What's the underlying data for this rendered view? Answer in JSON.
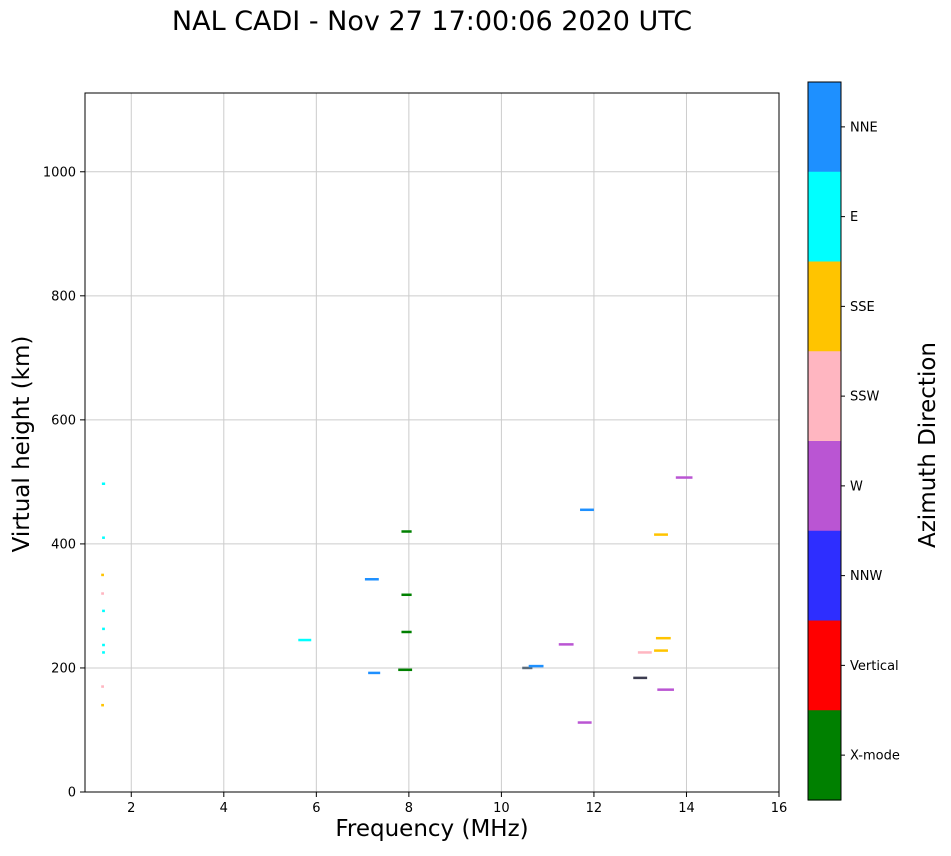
{
  "chart_data": {
    "type": "scatter",
    "title": "NAL CADI - Nov 27 17:00:06 2020 UTC",
    "xlabel": "Frequency (MHz)",
    "ylabel": "Virtual height (km)",
    "colorbar_label": "Azimuth Direction",
    "xlim": [
      1,
      16
    ],
    "ylim": [
      0,
      1127
    ],
    "xticks": [
      2,
      4,
      6,
      8,
      10,
      12,
      14,
      16
    ],
    "yticks": [
      0,
      200,
      400,
      600,
      800,
      1000
    ],
    "grid": true,
    "grid_color": "#cccccc",
    "marker": "horizontal-dash",
    "legend_position": "right-colorbar",
    "legend": [
      {
        "label": "NNE",
        "color": "#1E90FF"
      },
      {
        "label": "E",
        "color": "#00FFFF"
      },
      {
        "label": "SSE",
        "color": "#FFC400"
      },
      {
        "label": "SSW",
        "color": "#FFB6C1"
      },
      {
        "label": "W",
        "color": "#BA55D3"
      },
      {
        "label": "NNW",
        "color": "#2E2EFF"
      },
      {
        "label": "Vertical",
        "color": "#FF0000"
      },
      {
        "label": "X-mode",
        "color": "#008000"
      }
    ],
    "points": [
      {
        "x": 1.4,
        "y": 497,
        "dir": "E",
        "w": 0.07
      },
      {
        "x": 1.4,
        "y": 410,
        "dir": "E",
        "w": 0.06
      },
      {
        "x": 1.38,
        "y": 350,
        "dir": "SSE",
        "w": 0.06
      },
      {
        "x": 1.38,
        "y": 320,
        "dir": "SSW",
        "w": 0.06
      },
      {
        "x": 1.4,
        "y": 292,
        "dir": "E",
        "w": 0.06
      },
      {
        "x": 1.4,
        "y": 263,
        "dir": "E",
        "w": 0.06
      },
      {
        "x": 1.4,
        "y": 237,
        "dir": "E",
        "w": 0.06
      },
      {
        "x": 1.4,
        "y": 225,
        "dir": "E",
        "w": 0.06
      },
      {
        "x": 1.38,
        "y": 170,
        "dir": "SSW",
        "w": 0.06
      },
      {
        "x": 1.38,
        "y": 140,
        "dir": "SSE",
        "w": 0.06
      },
      {
        "x": 5.75,
        "y": 245,
        "dir": "E",
        "w": 0.28
      },
      {
        "x": 7.2,
        "y": 343,
        "dir": "NNE",
        "w": 0.3
      },
      {
        "x": 7.25,
        "y": 192,
        "dir": "NNE",
        "w": 0.26
      },
      {
        "x": 7.95,
        "y": 420,
        "dir": "X-mode",
        "w": 0.22
      },
      {
        "x": 7.95,
        "y": 318,
        "dir": "X-mode",
        "w": 0.22
      },
      {
        "x": 7.95,
        "y": 258,
        "dir": "X-mode",
        "w": 0.22
      },
      {
        "x": 7.92,
        "y": 197,
        "dir": "X-mode",
        "w": 0.3
      },
      {
        "x": 10.56,
        "y": 200,
        "color": "#5a6b7a",
        "w": 0.22
      },
      {
        "x": 10.75,
        "y": 203,
        "dir": "NNE",
        "w": 0.32
      },
      {
        "x": 11.4,
        "y": 238,
        "dir": "W",
        "w": 0.32
      },
      {
        "x": 11.85,
        "y": 455,
        "dir": "NNE",
        "w": 0.3
      },
      {
        "x": 11.8,
        "y": 112,
        "dir": "W",
        "w": 0.3
      },
      {
        "x": 13.0,
        "y": 184,
        "color": "#3c3c50",
        "w": 0.3
      },
      {
        "x": 13.1,
        "y": 225,
        "dir": "SSW",
        "w": 0.3
      },
      {
        "x": 13.45,
        "y": 415,
        "dir": "SSE",
        "w": 0.3
      },
      {
        "x": 13.5,
        "y": 248,
        "dir": "SSE",
        "w": 0.32
      },
      {
        "x": 13.45,
        "y": 228,
        "dir": "SSE",
        "w": 0.3
      },
      {
        "x": 13.55,
        "y": 165,
        "dir": "W",
        "w": 0.36
      },
      {
        "x": 13.95,
        "y": 507,
        "dir": "W",
        "w": 0.36
      }
    ]
  }
}
